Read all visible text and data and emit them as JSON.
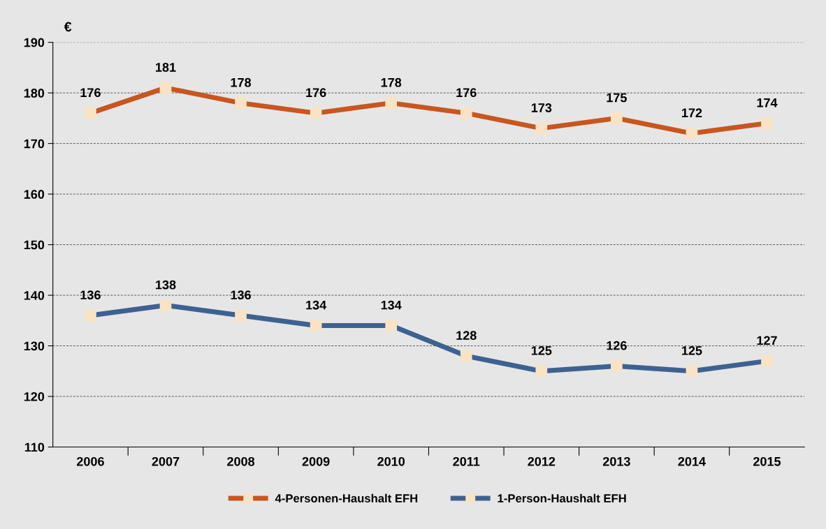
{
  "chart_data": {
    "type": "line",
    "ylabel": "€",
    "categories": [
      "2006",
      "2007",
      "2008",
      "2009",
      "2010",
      "2011",
      "2012",
      "2013",
      "2014",
      "2015"
    ],
    "series": [
      {
        "name": "4-Personen-Haushalt EFH",
        "color": "#c8561e",
        "values": [
          176,
          181,
          178,
          176,
          178,
          176,
          173,
          175,
          172,
          174
        ]
      },
      {
        "name": "1-Person-Haushalt EFH",
        "color": "#3e6191",
        "values": [
          136,
          138,
          136,
          134,
          134,
          128,
          125,
          126,
          125,
          127
        ]
      }
    ],
    "ylim": [
      110,
      190
    ],
    "yticks": [
      110,
      120,
      130,
      140,
      150,
      160,
      170,
      180,
      190
    ],
    "grid": "y",
    "legend": "bottom",
    "marker": "square",
    "line_style": "solid",
    "data_labels": true
  }
}
